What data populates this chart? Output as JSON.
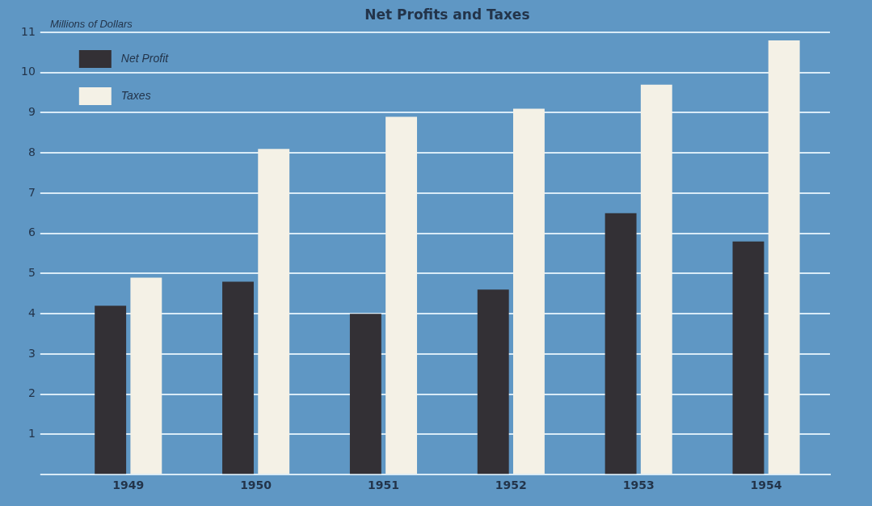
{
  "chart_data": {
    "type": "bar",
    "title": "Net Profits and Taxes",
    "ylabel": "Millions of Dollars",
    "categories": [
      "1949",
      "1950",
      "1951",
      "1952",
      "1953",
      "1954"
    ],
    "series": [
      {
        "name": "Net Profit",
        "color": "#333035",
        "values": [
          4.2,
          4.8,
          4.0,
          4.6,
          6.5,
          5.8
        ]
      },
      {
        "name": "Taxes",
        "color": "#f4f1e6",
        "values": [
          4.9,
          8.1,
          8.9,
          9.1,
          9.7,
          10.8
        ]
      }
    ],
    "ylim": [
      0,
      11
    ],
    "yticks": [
      {
        "value": 0,
        "label": null
      },
      1,
      2,
      3,
      4,
      5,
      6,
      7,
      8,
      9,
      10,
      11
    ],
    "grid": "y",
    "legend": "top left"
  }
}
